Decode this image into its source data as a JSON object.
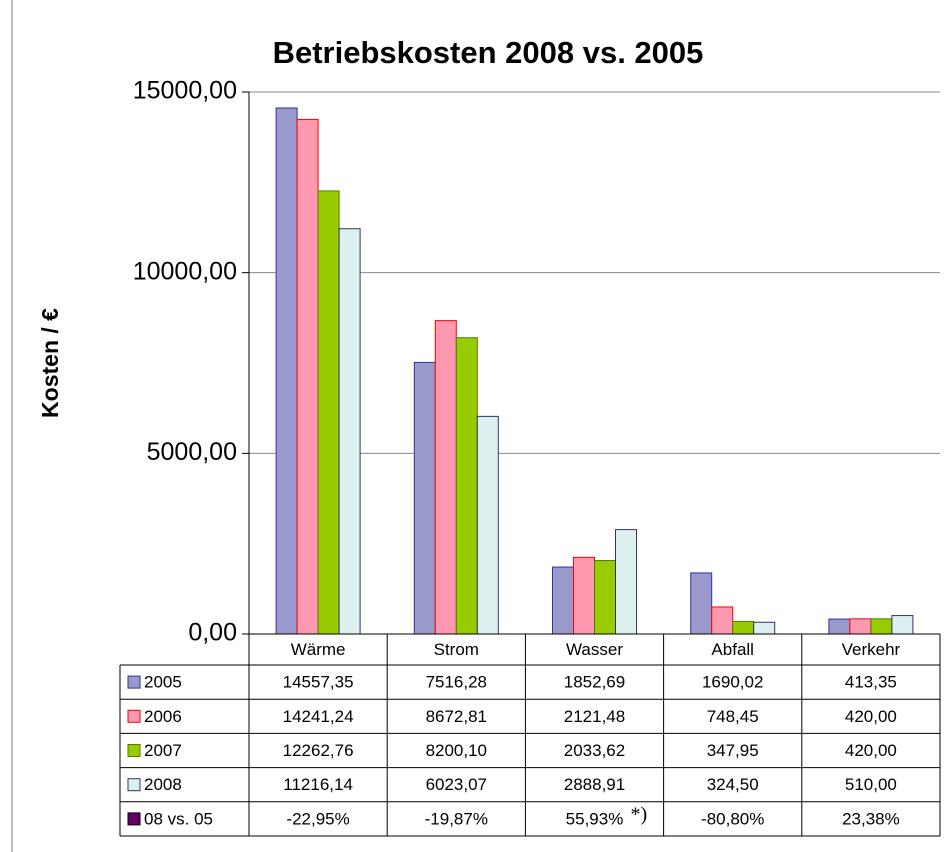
{
  "chart_data": {
    "type": "bar",
    "title": "Betriebskosten 2008 vs. 2005",
    "ylabel": "Kosten / €",
    "categories": [
      "Wärme",
      "Strom",
      "Wasser",
      "Abfall",
      "Verkehr"
    ],
    "series": [
      {
        "name": "2005",
        "color": "#9999cc",
        "edgecolor": "#333399",
        "values": [
          14557.35,
          7516.28,
          1852.69,
          1690.02,
          413.35
        ],
        "value_labels": [
          "14557,35",
          "7516,28",
          "1852,69",
          "1690,02",
          "413,35"
        ]
      },
      {
        "name": "2006",
        "color": "#ff99b0",
        "edgecolor": "#ff0000",
        "values": [
          14241.24,
          8672.81,
          2121.48,
          748.45,
          420.0
        ],
        "value_labels": [
          "14241,24",
          "8672,81",
          "2121,48",
          "748,45",
          "420,00"
        ]
      },
      {
        "name": "2007",
        "color": "#99cc00",
        "edgecolor": "#4d7a00",
        "values": [
          12262.76,
          8200.1,
          2033.62,
          347.95,
          420.0
        ],
        "value_labels": [
          "12262,76",
          "8200,10",
          "2033,62",
          "347,95",
          "420,00"
        ]
      },
      {
        "name": "2008",
        "color": "#ddf0f0",
        "edgecolor": "#333366",
        "values": [
          11216.14,
          6023.07,
          2888.91,
          324.5,
          510.0
        ],
        "value_labels": [
          "11216,14",
          "6023,07",
          "2888,91",
          "324,50",
          "510,00"
        ]
      }
    ],
    "comparison": {
      "name": "08 vs. 05",
      "color": "#660066",
      "values": [
        -22.95,
        -19.87,
        55.93,
        -80.8,
        23.38
      ],
      "value_labels": [
        "-22,95%",
        "-19,87%",
        "55,93%",
        "-80,80%",
        "23,38%"
      ]
    },
    "note": "*)",
    "ylim": [
      0,
      15000
    ],
    "yticks": [
      {
        "value": 0,
        "label": "0,00"
      },
      {
        "value": 5000,
        "label": "5000,00"
      },
      {
        "value": 10000,
        "label": "10000,00"
      },
      {
        "value": 15000,
        "label": "15000,00"
      }
    ],
    "grid": true
  }
}
